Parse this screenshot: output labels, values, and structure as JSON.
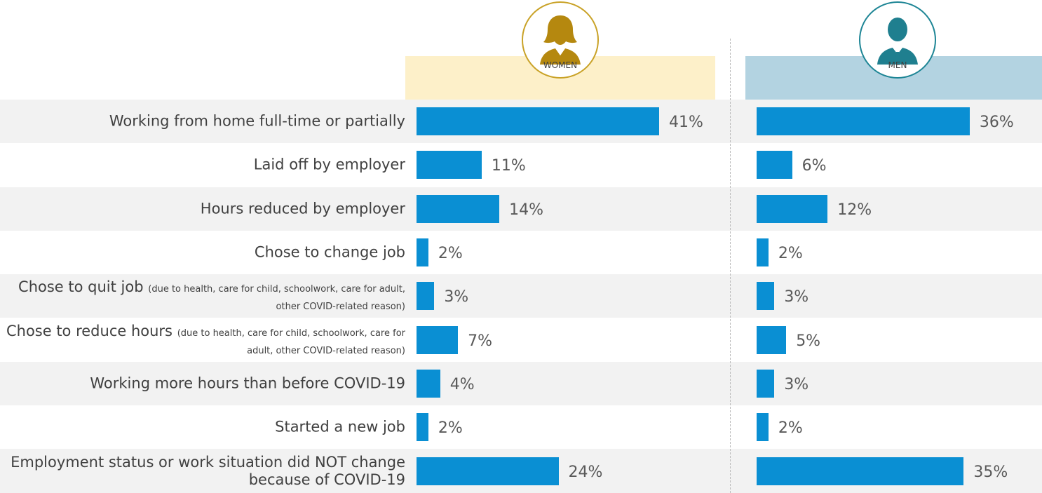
{
  "chart_data": {
    "type": "bar",
    "orientation": "horizontal",
    "categories": [
      "Working from home full-time or partially",
      "Laid off by employer",
      "Hours reduced by employer",
      "Chose to change job",
      "Chose to quit job",
      "Chose to reduce hours",
      "Working more hours than before COVID-19",
      "Started a new job",
      "Employment status or work situation did NOT change because of COVID-19"
    ],
    "category_details": [
      null,
      null,
      null,
      null,
      "(due to health, care for child, schoolwork, care for adult, other COVID-related reason)",
      "(due to health, care for child, schoolwork, care for adult, other COVID-related reason)",
      null,
      null,
      null
    ],
    "series": [
      {
        "name": "WOMEN",
        "color": "#0a8fd3",
        "values": [
          41,
          11,
          14,
          2,
          3,
          7,
          4,
          2,
          24
        ],
        "value_labels": [
          "41%",
          "11%",
          "14%",
          "2%",
          "3%",
          "7%",
          "4%",
          "2%",
          "24%"
        ]
      },
      {
        "name": "MEN",
        "color": "#0a8fd3",
        "values": [
          36,
          6,
          12,
          2,
          3,
          5,
          3,
          2,
          35
        ],
        "value_labels": [
          "36%",
          "6%",
          "12%",
          "2%",
          "3%",
          "5%",
          "3%",
          "2%",
          "35%"
        ]
      }
    ]
  }
}
